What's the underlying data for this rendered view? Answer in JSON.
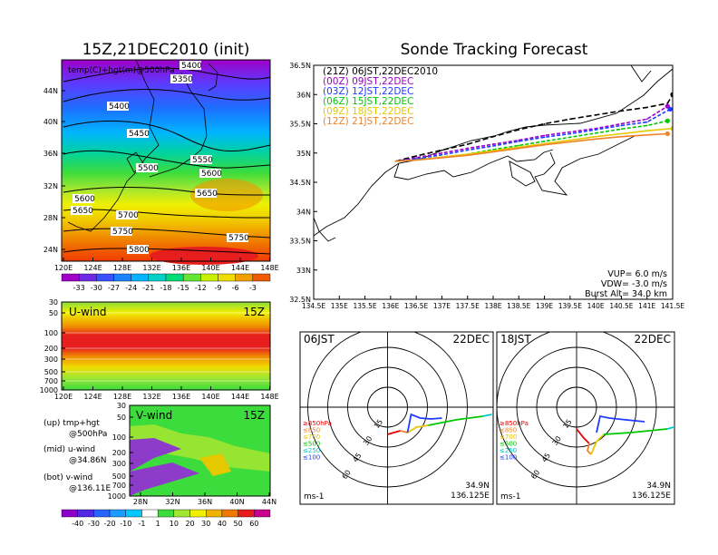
{
  "left_title": "15Z,21DEC2010 (init)",
  "right_title": "Sonde Tracking Forecast",
  "map_top": {
    "label": "temp(C)+hgt(m)@500hPa",
    "lat_ticks": [
      "44N",
      "40N",
      "36N",
      "32N",
      "28N",
      "24N"
    ],
    "lon_ticks": [
      "120E",
      "124E",
      "128E",
      "132E",
      "136E",
      "140E",
      "144E",
      "148E"
    ],
    "contours": [
      "5400",
      "5350",
      "5400",
      "5450",
      "5500",
      "5550",
      "5600",
      "5650",
      "5600",
      "5650",
      "5700",
      "5750",
      "5750",
      "5800"
    ]
  },
  "temp_colorbar": [
    "-33",
    "-30",
    "-27",
    "-24",
    "-21",
    "-18",
    "-15",
    "-12",
    "-9",
    "-6",
    "-3"
  ],
  "uwind_panel": {
    "label": "U-wind",
    "time": "15Z",
    "y_ticks": [
      "30",
      "50",
      "100",
      "200",
      "300",
      "500",
      "700",
      "1000"
    ],
    "x_ticks": [
      "120E",
      "124E",
      "128E",
      "132E",
      "136E",
      "140E",
      "144E",
      "148E"
    ]
  },
  "vwind_panel": {
    "label": "V-wind",
    "time": "15Z",
    "y_ticks": [
      "30",
      "50",
      "100",
      "200",
      "300",
      "500",
      "700",
      "1000"
    ],
    "x_ticks": [
      "28N",
      "32N",
      "36N",
      "40N",
      "44N"
    ]
  },
  "wind_colorbar": [
    "-40",
    "-30",
    "-20",
    "-10",
    "-1",
    "1",
    "10",
    "20",
    "30",
    "40",
    "50",
    "60"
  ],
  "notes": [
    {
      "a": "(up) tmp+hgt",
      "b": "@500hPa"
    },
    {
      "a": "(mid) u-wind",
      "b": "@34.86N"
    },
    {
      "a": "(bot) v-wind",
      "b": "@136.11E"
    }
  ],
  "track_map": {
    "lat_ticks": [
      "36.5N",
      "36N",
      "35.5N",
      "35N",
      "34.5N",
      "34N",
      "33.5N",
      "33N",
      "32.5N"
    ],
    "lon_ticks": [
      "134.5E",
      "135E",
      "135.5E",
      "136E",
      "136.5E",
      "137E",
      "137.5E",
      "138E",
      "138.5E",
      "139E",
      "139.5E",
      "140E",
      "140.5E",
      "141E",
      "141.5E"
    ],
    "legend": [
      {
        "text": "(21Z)  06JST,22DEC2010",
        "color": "#000000"
      },
      {
        "text": "(00Z)  09JST,22DEC",
        "color": "#a000c8"
      },
      {
        "text": "(03Z)  12JST,22DEC",
        "color": "#1e3cff"
      },
      {
        "text": "(06Z)  15JST,22DEC",
        "color": "#00c800"
      },
      {
        "text": "(09Z)  18JST,22DEC",
        "color": "#e6c800"
      },
      {
        "text": "(12Z)  21JST,22DEC",
        "color": "#f08228"
      }
    ],
    "params": [
      "VUP= 6.0 m/s",
      "VDW= -3.0 m/s",
      "Burst Alt= 34.0 km"
    ]
  },
  "hodo_left": {
    "time": "06JST",
    "date": "22DEC",
    "lat": "34.9N",
    "lon": "136.125E",
    "unit": "ms-1"
  },
  "hodo_right": {
    "time": "18JST",
    "date": "22DEC",
    "lat": "34.9N",
    "lon": "136.125E",
    "unit": "ms-1"
  },
  "hodo_levels": [
    {
      "text": "≥850hPa",
      "color": "#e60000"
    },
    {
      "text": "≤850",
      "color": "#f08228"
    },
    {
      "text": "≤700",
      "color": "#e6c800"
    },
    {
      "text": "≤500",
      "color": "#00c800"
    },
    {
      "text": "≤250",
      "color": "#00c8c8"
    },
    {
      "text": "≤100",
      "color": "#1e3cff"
    }
  ],
  "hodo_rings": [
    "15",
    "30",
    "45",
    "60"
  ],
  "chart_data": {
    "type": "line",
    "title": "Sonde Tracking Forecast",
    "xlabel": "",
    "ylabel": "",
    "xlim": [
      134.5,
      141.5
    ],
    "ylim": [
      32.5,
      36.5
    ],
    "series": [
      {
        "name": "(21Z) 06JST,22DEC2010",
        "x": [
          136.1,
          136.5,
          137.0,
          137.5,
          138.0,
          138.5,
          139.0,
          139.5,
          140.0,
          140.5,
          141.0,
          141.4,
          141.5
        ],
        "y": [
          34.86,
          34.95,
          35.05,
          35.15,
          35.28,
          35.4,
          35.5,
          35.58,
          35.65,
          35.72,
          35.78,
          35.85,
          36.0
        ]
      },
      {
        "name": "(00Z) 09JST,22DEC",
        "x": [
          136.1,
          136.5,
          137.0,
          137.5,
          138.0,
          138.5,
          139.0,
          139.5,
          140.0,
          140.5,
          141.0,
          141.4
        ],
        "y": [
          34.86,
          34.92,
          35.0,
          35.08,
          35.15,
          35.22,
          35.3,
          35.36,
          35.42,
          35.5,
          35.58,
          35.8
        ]
      },
      {
        "name": "(03Z) 12JST,22DEC",
        "x": [
          136.1,
          136.5,
          137.0,
          137.5,
          138.0,
          138.5,
          139.0,
          139.5,
          140.0,
          140.5,
          141.0,
          141.45
        ],
        "y": [
          34.86,
          34.9,
          34.97,
          35.05,
          35.12,
          35.2,
          35.27,
          35.33,
          35.4,
          35.47,
          35.53,
          35.75
        ]
      },
      {
        "name": "(06Z) 15JST,22DEC",
        "x": [
          136.1,
          136.5,
          137.0,
          137.5,
          138.0,
          138.5,
          139.0,
          139.5,
          140.0,
          140.5,
          141.0,
          141.4
        ],
        "y": [
          34.86,
          34.88,
          34.93,
          34.98,
          35.06,
          35.13,
          35.2,
          35.27,
          35.34,
          35.41,
          35.47,
          35.55
        ]
      },
      {
        "name": "(09Z) 18JST,22DEC",
        "x": [
          136.1,
          136.5,
          137.0,
          137.5,
          138.0,
          138.5,
          139.0,
          139.5,
          140.0,
          140.5,
          141.0,
          141.5
        ],
        "y": [
          34.86,
          34.88,
          34.93,
          34.98,
          35.04,
          35.1,
          35.16,
          35.22,
          35.28,
          35.33,
          35.38,
          35.42
        ]
      },
      {
        "name": "(12Z) 21JST,22DEC",
        "x": [
          136.1,
          136.5,
          137.0,
          137.5,
          138.0,
          138.5,
          139.0,
          139.5,
          140.0,
          140.5,
          141.0,
          141.4
        ],
        "y": [
          34.86,
          34.88,
          34.92,
          34.96,
          35.02,
          35.08,
          35.14,
          35.19,
          35.24,
          35.28,
          35.31,
          35.33
        ]
      }
    ]
  }
}
